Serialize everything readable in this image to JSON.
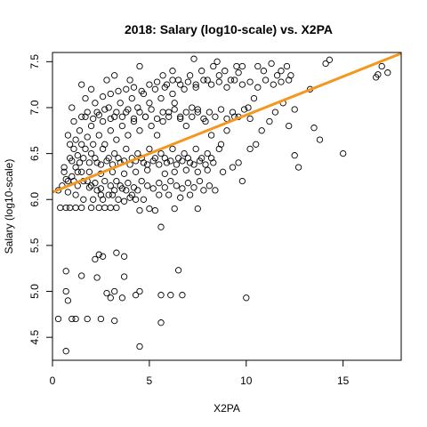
{
  "chart_data": {
    "type": "scatter",
    "title": "2018: Salary (log10-scale) vs. X2PA",
    "xlabel": "X2PA",
    "ylabel": "Salary (log10-scale)",
    "xlim": [
      0,
      18
    ],
    "ylim": [
      4.25,
      7.6
    ],
    "x_ticks": [
      0,
      5,
      10,
      15
    ],
    "y_ticks": [
      4.5,
      5.0,
      5.5,
      6.0,
      6.5,
      7.0,
      7.5
    ],
    "grid": false,
    "trend_line": {
      "color": "#f5961e",
      "x": [
        0,
        18
      ],
      "y": [
        6.08,
        7.59
      ]
    },
    "point_style": {
      "shape": "open-circle",
      "color": "#000000"
    },
    "points": [
      [
        0.3,
        4.7
      ],
      [
        0.7,
        4.35
      ],
      [
        0.8,
        4.9
      ],
      [
        1.0,
        4.7
      ],
      [
        1.2,
        4.7
      ],
      [
        1.8,
        4.7
      ],
      [
        2.5,
        4.7
      ],
      [
        3.2,
        4.68
      ],
      [
        3.0,
        4.93
      ],
      [
        2.8,
        4.98
      ],
      [
        3.2,
        5.0
      ],
      [
        3.6,
        4.93
      ],
      [
        4.3,
        4.96
      ],
      [
        4.5,
        5.0
      ],
      [
        4.5,
        4.4
      ],
      [
        5.6,
        4.66
      ],
      [
        5.6,
        4.96
      ],
      [
        6.1,
        4.96
      ],
      [
        6.7,
        4.96
      ],
      [
        10.0,
        4.93
      ],
      [
        0.7,
        5.0
      ],
      [
        0.7,
        5.22
      ],
      [
        1.5,
        5.17
      ],
      [
        2.3,
        5.15
      ],
      [
        2.6,
        5.38
      ],
      [
        2.4,
        5.4
      ],
      [
        3.3,
        5.42
      ],
      [
        3.7,
        5.16
      ],
      [
        3.7,
        5.38
      ],
      [
        6.5,
        5.23
      ],
      [
        2.2,
        5.35
      ],
      [
        5.6,
        5.7
      ],
      [
        0.4,
        5.91
      ],
      [
        0.7,
        5.91
      ],
      [
        0.9,
        5.91
      ],
      [
        1.2,
        5.91
      ],
      [
        1.5,
        5.91
      ],
      [
        2.0,
        5.91
      ],
      [
        2.4,
        5.91
      ],
      [
        2.7,
        5.91
      ],
      [
        3.0,
        5.91
      ],
      [
        3.3,
        5.91
      ],
      [
        4.5,
        5.88
      ],
      [
        5.3,
        5.88
      ],
      [
        6.3,
        5.9
      ],
      [
        7.5,
        5.9
      ],
      [
        0.3,
        6.1
      ],
      [
        0.5,
        6.15
      ],
      [
        0.8,
        6.2
      ],
      [
        1.0,
        6.25
      ],
      [
        1.2,
        6.35
      ],
      [
        1.5,
        6.3
      ],
      [
        1.8,
        6.2
      ],
      [
        2.0,
        6.15
      ],
      [
        2.3,
        6.1
      ],
      [
        2.6,
        6.0
      ],
      [
        2.9,
        6.05
      ],
      [
        3.2,
        6.1
      ],
      [
        3.5,
        6.15
      ],
      [
        3.8,
        6.1
      ],
      [
        4.1,
        6.05
      ],
      [
        4.4,
        6.1
      ],
      [
        4.7,
        6.0
      ],
      [
        5.0,
        5.9
      ],
      [
        0.6,
        6.35
      ],
      [
        0.9,
        6.45
      ],
      [
        1.1,
        6.55
      ],
      [
        1.4,
        6.4
      ],
      [
        1.7,
        6.55
      ],
      [
        2.0,
        6.5
      ],
      [
        2.3,
        6.4
      ],
      [
        2.6,
        6.55
      ],
      [
        2.9,
        6.45
      ],
      [
        3.2,
        6.5
      ],
      [
        3.5,
        6.4
      ],
      [
        3.8,
        6.55
      ],
      [
        4.1,
        6.45
      ],
      [
        4.4,
        6.5
      ],
      [
        4.7,
        6.4
      ],
      [
        5.0,
        6.55
      ],
      [
        5.3,
        6.45
      ],
      [
        5.6,
        6.5
      ],
      [
        5.9,
        6.4
      ],
      [
        6.2,
        6.55
      ],
      [
        6.5,
        6.45
      ],
      [
        6.8,
        6.5
      ],
      [
        7.1,
        6.4
      ],
      [
        7.4,
        6.55
      ],
      [
        7.7,
        6.45
      ],
      [
        8.0,
        6.5
      ],
      [
        8.3,
        6.4
      ],
      [
        8.6,
        6.55
      ],
      [
        0.8,
        6.7
      ],
      [
        1.1,
        6.85
      ],
      [
        1.4,
        6.75
      ],
      [
        1.7,
        6.9
      ],
      [
        2.0,
        6.8
      ],
      [
        2.3,
        6.95
      ],
      [
        2.6,
        6.85
      ],
      [
        2.9,
        7.0
      ],
      [
        3.2,
        6.9
      ],
      [
        3.5,
        7.05
      ],
      [
        3.8,
        6.95
      ],
      [
        4.1,
        7.1
      ],
      [
        4.4,
        7.0
      ],
      [
        4.7,
        7.15
      ],
      [
        5.0,
        7.05
      ],
      [
        5.3,
        7.2
      ],
      [
        5.6,
        7.1
      ],
      [
        5.9,
        7.25
      ],
      [
        6.2,
        7.15
      ],
      [
        6.5,
        7.3
      ],
      [
        6.8,
        7.2
      ],
      [
        7.1,
        7.35
      ],
      [
        7.4,
        7.25
      ],
      [
        7.7,
        7.4
      ],
      [
        8.0,
        7.3
      ],
      [
        8.3,
        7.45
      ],
      [
        8.6,
        7.35
      ],
      [
        8.9,
        7.4
      ],
      [
        9.2,
        7.3
      ],
      [
        9.5,
        7.45
      ],
      [
        1.0,
        7.0
      ],
      [
        1.5,
        7.25
      ],
      [
        2.0,
        7.2
      ],
      [
        2.8,
        7.3
      ],
      [
        3.2,
        7.35
      ],
      [
        4.0,
        7.3
      ],
      [
        4.5,
        7.45
      ],
      [
        5.7,
        7.35
      ],
      [
        6.2,
        7.4
      ],
      [
        7.3,
        7.53
      ],
      [
        8.5,
        7.5
      ],
      [
        9.8,
        7.45
      ],
      [
        10.6,
        7.45
      ],
      [
        11.3,
        7.48
      ],
      [
        11.8,
        7.4
      ],
      [
        12.1,
        7.45
      ],
      [
        12.3,
        7.35
      ],
      [
        14.1,
        7.48
      ],
      [
        14.3,
        7.52
      ],
      [
        16.7,
        7.33
      ],
      [
        16.8,
        7.36
      ],
      [
        17.0,
        7.45
      ],
      [
        17.3,
        7.38
      ],
      [
        13.3,
        7.2
      ],
      [
        13.5,
        6.78
      ],
      [
        13.8,
        6.65
      ],
      [
        15.0,
        6.5
      ],
      [
        12.5,
        6.48
      ],
      [
        12.7,
        6.35
      ],
      [
        9.8,
        6.2
      ],
      [
        1.1,
        6.2
      ],
      [
        1.3,
        6.15
      ],
      [
        1.6,
        6.2
      ],
      [
        1.9,
        6.13
      ],
      [
        2.2,
        6.18
      ],
      [
        2.5,
        6.12
      ],
      [
        2.7,
        6.2
      ],
      [
        3.0,
        6.15
      ],
      [
        3.3,
        6.2
      ],
      [
        3.6,
        6.12
      ],
      [
        3.9,
        6.18
      ],
      [
        4.2,
        6.13
      ],
      [
        4.6,
        6.2
      ],
      [
        4.9,
        6.15
      ],
      [
        5.2,
        6.12
      ],
      [
        5.5,
        6.18
      ],
      [
        5.8,
        6.13
      ],
      [
        6.1,
        6.2
      ],
      [
        6.4,
        6.15
      ],
      [
        6.7,
        6.12
      ],
      [
        7.0,
        6.18
      ],
      [
        7.3,
        6.13
      ],
      [
        7.6,
        6.2
      ],
      [
        8.1,
        6.15
      ],
      [
        8.8,
        6.3
      ],
      [
        9.3,
        6.35
      ],
      [
        9.6,
        6.4
      ],
      [
        10.2,
        6.55
      ],
      [
        10.5,
        6.6
      ],
      [
        10.8,
        6.75
      ],
      [
        11.2,
        6.85
      ],
      [
        11.5,
        6.95
      ],
      [
        11.9,
        7.05
      ],
      [
        12.2,
        6.8
      ],
      [
        12.5,
        6.98
      ],
      [
        10.1,
        7.0
      ],
      [
        10.4,
        7.1
      ],
      [
        9.0,
        6.75
      ],
      [
        9.4,
        6.9
      ],
      [
        8.7,
        6.6
      ],
      [
        8.2,
        6.7
      ],
      [
        7.9,
        6.85
      ],
      [
        7.5,
        6.95
      ],
      [
        7.2,
        7.0
      ],
      [
        6.9,
        6.8
      ],
      [
        6.6,
        6.9
      ],
      [
        6.3,
        7.05
      ],
      [
        6.0,
        6.95
      ],
      [
        5.7,
        6.85
      ],
      [
        5.4,
        6.7
      ],
      [
        5.1,
        6.8
      ],
      [
        4.8,
        6.9
      ],
      [
        4.5,
        6.75
      ],
      [
        4.2,
        6.85
      ],
      [
        3.9,
        6.7
      ],
      [
        3.6,
        6.8
      ],
      [
        3.3,
        6.65
      ],
      [
        3.0,
        6.75
      ],
      [
        2.7,
        6.6
      ],
      [
        2.4,
        6.7
      ],
      [
        2.1,
        6.6
      ],
      [
        1.8,
        6.68
      ],
      [
        1.5,
        6.6
      ],
      [
        1.2,
        6.65
      ],
      [
        0.9,
        6.6
      ],
      [
        0.6,
        6.3
      ],
      [
        0.8,
        6.08
      ],
      [
        1.2,
        6.05
      ],
      [
        1.6,
        6.0
      ],
      [
        2.1,
        6.0
      ],
      [
        2.5,
        6.05
      ],
      [
        3.1,
        6.05
      ],
      [
        3.4,
        6.0
      ],
      [
        3.7,
        5.98
      ],
      [
        4.0,
        6.02
      ],
      [
        4.3,
        6.0
      ],
      [
        5.5,
        6.05
      ],
      [
        6.0,
        6.05
      ],
      [
        6.6,
        6.02
      ],
      [
        7.1,
        6.05
      ],
      [
        7.8,
        6.1
      ],
      [
        8.4,
        6.1
      ],
      [
        5.8,
        6.28
      ],
      [
        6.3,
        6.3
      ],
      [
        6.9,
        6.32
      ],
      [
        7.5,
        6.3
      ],
      [
        8.0,
        6.32
      ],
      [
        4.9,
        6.32
      ],
      [
        4.3,
        6.3
      ],
      [
        3.7,
        6.28
      ],
      [
        3.1,
        6.3
      ],
      [
        2.5,
        6.28
      ],
      [
        1.9,
        6.3
      ],
      [
        1.3,
        6.3
      ],
      [
        0.7,
        6.22
      ],
      [
        1.0,
        6.42
      ],
      [
        1.3,
        6.48
      ],
      [
        1.6,
        6.45
      ],
      [
        1.9,
        6.4
      ],
      [
        2.2,
        6.45
      ],
      [
        2.5,
        6.38
      ],
      [
        2.8,
        6.42
      ],
      [
        3.1,
        6.38
      ],
      [
        3.4,
        6.45
      ],
      [
        3.7,
        6.42
      ],
      [
        4.0,
        6.38
      ],
      [
        4.3,
        6.42
      ],
      [
        4.6,
        6.45
      ],
      [
        4.9,
        6.38
      ],
      [
        5.2,
        6.42
      ],
      [
        5.5,
        6.38
      ],
      [
        5.8,
        6.45
      ],
      [
        6.1,
        6.42
      ],
      [
        6.4,
        6.38
      ],
      [
        6.7,
        6.42
      ],
      [
        7.0,
        6.45
      ],
      [
        7.3,
        6.38
      ],
      [
        7.6,
        6.42
      ],
      [
        7.9,
        6.38
      ],
      [
        8.2,
        6.45
      ],
      [
        1.5,
        6.9
      ],
      [
        1.8,
        6.95
      ],
      [
        2.1,
        6.88
      ],
      [
        2.4,
        6.92
      ],
      [
        2.7,
        6.98
      ],
      [
        3.0,
        6.88
      ],
      [
        3.3,
        6.95
      ],
      [
        3.6,
        6.9
      ],
      [
        3.9,
        6.98
      ],
      [
        4.2,
        6.88
      ],
      [
        4.5,
        6.95
      ],
      [
        4.8,
        6.9
      ],
      [
        5.1,
        6.98
      ],
      [
        5.4,
        6.88
      ],
      [
        5.7,
        6.95
      ],
      [
        6.0,
        6.9
      ],
      [
        6.3,
        6.98
      ],
      [
        6.6,
        6.88
      ],
      [
        6.9,
        6.95
      ],
      [
        7.2,
        6.9
      ],
      [
        7.5,
        6.98
      ],
      [
        7.8,
        6.88
      ],
      [
        8.1,
        6.95
      ],
      [
        8.4,
        6.9
      ],
      [
        8.7,
        6.98
      ],
      [
        9.0,
        6.88
      ],
      [
        9.3,
        6.95
      ],
      [
        9.6,
        6.9
      ],
      [
        9.9,
        6.98
      ],
      [
        10.2,
        6.88
      ],
      [
        1.7,
        7.1
      ],
      [
        2.2,
        7.05
      ],
      [
        2.6,
        7.12
      ],
      [
        3.0,
        7.15
      ],
      [
        3.4,
        7.18
      ],
      [
        3.8,
        7.2
      ],
      [
        4.2,
        7.22
      ],
      [
        4.6,
        7.18
      ],
      [
        5.0,
        7.25
      ],
      [
        5.4,
        7.28
      ],
      [
        5.8,
        7.22
      ],
      [
        6.2,
        7.3
      ],
      [
        6.6,
        7.25
      ],
      [
        7.0,
        7.28
      ],
      [
        7.4,
        7.22
      ],
      [
        7.8,
        7.3
      ],
      [
        8.2,
        7.25
      ],
      [
        8.6,
        7.28
      ],
      [
        9.0,
        7.22
      ],
      [
        9.4,
        7.3
      ],
      [
        9.8,
        7.25
      ],
      [
        10.2,
        7.28
      ],
      [
        10.6,
        7.22
      ],
      [
        11.0,
        7.3
      ],
      [
        11.4,
        7.25
      ],
      [
        11.8,
        7.28
      ],
      [
        12.2,
        7.3
      ],
      [
        10.9,
        7.4
      ],
      [
        11.6,
        7.35
      ],
      [
        9.6,
        7.38
      ]
    ]
  }
}
